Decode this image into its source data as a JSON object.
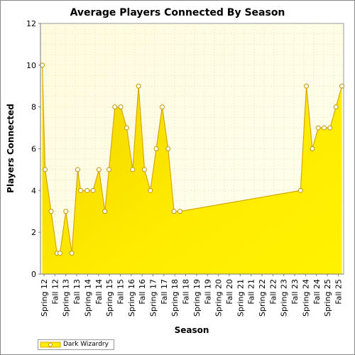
{
  "chart_data": {
    "type": "area",
    "title": "Average Players Connected By Season",
    "xlabel": "Season",
    "ylabel": "Players Connected",
    "ylim": [
      0,
      12
    ],
    "yticks": [
      0,
      2,
      4,
      6,
      8,
      10,
      12
    ],
    "grid": true,
    "legend": "bottom-left",
    "tick_labels": [
      "Spring 12",
      "Fall 12",
      "Spring 13",
      "Fall 13",
      "Spring 14",
      "Fall 14",
      "Spring 15",
      "Fall 15",
      "Spring 16",
      "Fall 16",
      "Spring 17",
      "Fall 17",
      "Spring 18",
      "Fall 18",
      "Spring 19",
      "Fall 19",
      "Spring 20",
      "Fall 20",
      "Spring 21",
      "Fall 21",
      "Spring 22",
      "Fall 22",
      "Spring 23",
      "Fall 23",
      "Spring 24",
      "Fall 24",
      "Spring 25",
      "Fall 25"
    ],
    "series": [
      {
        "name": "Dark Wizardry",
        "color": "#ffee00",
        "line_color": "#d8a800",
        "marker_edge": "#c89200",
        "points": [
          {
            "x": "2012-04-01",
            "y": 10
          },
          {
            "x": "2012-05-20",
            "y": 5
          },
          {
            "x": "2012-08-29",
            "y": 3
          },
          {
            "x": "2012-12-07",
            "y": 1
          },
          {
            "x": "2013-01-26",
            "y": 1
          },
          {
            "x": "2013-05-06",
            "y": 3
          },
          {
            "x": "2013-08-14",
            "y": 1
          },
          {
            "x": "2013-11-22",
            "y": 5
          },
          {
            "x": "2014-01-11",
            "y": 4
          },
          {
            "x": "2014-05-01",
            "y": 4
          },
          {
            "x": "2014-08-09",
            "y": 4
          },
          {
            "x": "2014-11-17",
            "y": 5
          },
          {
            "x": "2015-02-25",
            "y": 3
          },
          {
            "x": "2015-05-05",
            "y": 5
          },
          {
            "x": "2015-08-13",
            "y": 8
          },
          {
            "x": "2015-11-21",
            "y": 8
          },
          {
            "x": "2016-03-01",
            "y": 7
          },
          {
            "x": "2016-06-09",
            "y": 5
          },
          {
            "x": "2016-09-17",
            "y": 9
          },
          {
            "x": "2016-12-26",
            "y": 5
          },
          {
            "x": "2017-04-05",
            "y": 4
          },
          {
            "x": "2017-07-14",
            "y": 6
          },
          {
            "x": "2017-10-22",
            "y": 8
          },
          {
            "x": "2018-01-30",
            "y": 6
          },
          {
            "x": "2018-05-10",
            "y": 3
          },
          {
            "x": "2018-08-18",
            "y": 3
          },
          {
            "x": "2024-03-20",
            "y": 4
          },
          {
            "x": "2024-06-28",
            "y": 9
          },
          {
            "x": "2024-10-06",
            "y": 6
          },
          {
            "x": "2025-01-14",
            "y": 7
          },
          {
            "x": "2025-04-24",
            "y": 7
          },
          {
            "x": "2025-08-02",
            "y": 7
          },
          {
            "x": "2025-11-10",
            "y": 8
          },
          {
            "x": "2026-02-18",
            "y": 9
          }
        ]
      }
    ]
  }
}
